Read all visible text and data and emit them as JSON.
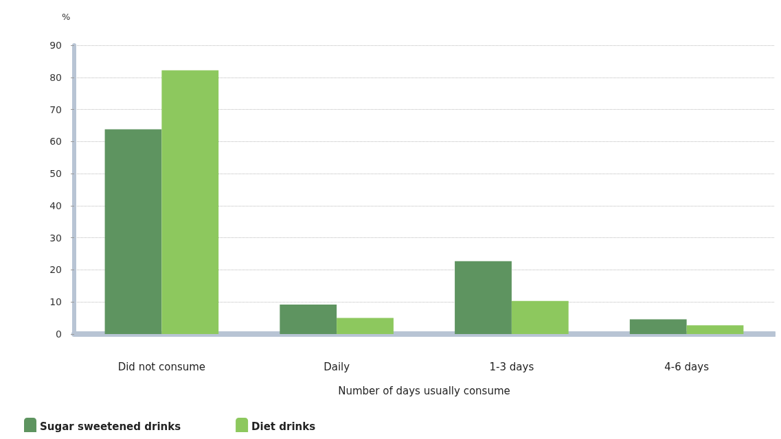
{
  "chart_data": {
    "type": "bar",
    "ylabel": "%",
    "xlabel": "Number of days usually consume",
    "categories": [
      "Did not consume",
      "Daily",
      "1-3 days",
      "4-6 days"
    ],
    "series": [
      {
        "name": "Sugar sweetened drinks",
        "color": "#5e9460",
        "values": [
          63.8,
          9.2,
          22.7,
          4.6
        ]
      },
      {
        "name": "Diet drinks",
        "color": "#8dc85e",
        "values": [
          82.2,
          5.0,
          10.3,
          2.7
        ]
      }
    ],
    "ylim": [
      0,
      90
    ],
    "yticks": [
      0,
      10,
      20,
      30,
      40,
      50,
      60,
      70,
      80,
      90
    ],
    "grid": "y",
    "legend": "bottom left"
  }
}
